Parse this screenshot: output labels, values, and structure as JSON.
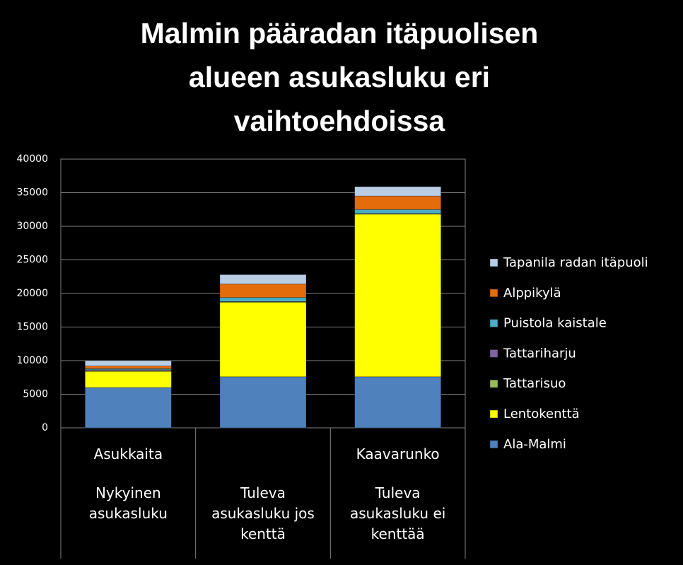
{
  "chart_data": {
    "type": "stacked_bar",
    "title": "Malmin pääradan itäpuolisen alueen asukasluku eri vaihtoehdoissa",
    "category_groups": [
      "Asukkaita",
      null,
      "Kaavarunko"
    ],
    "categories": [
      "Nykyinen asukasluku",
      "Tuleva asukasluku jos kenttä",
      "Tuleva asukasluku ei kenttää"
    ],
    "series": [
      {
        "name": "Ala-Malmi",
        "color": "#4f81bd",
        "values": [
          6000,
          7600,
          7600
        ]
      },
      {
        "name": "Lentokenttä",
        "color": "#ffff00",
        "values": [
          2400,
          11100,
          24200
        ]
      },
      {
        "name": "Tattarisuo",
        "color": "#9bbb59",
        "values": [
          100,
          50,
          50
        ]
      },
      {
        "name": "Tattariharju",
        "color": "#8064a2",
        "values": [
          150,
          50,
          50
        ]
      },
      {
        "name": "Puistola kaistale",
        "color": "#4bacc6",
        "values": [
          150,
          600,
          600
        ]
      },
      {
        "name": "Alppikylä",
        "color": "#e46c0a",
        "values": [
          400,
          2000,
          2000
        ]
      },
      {
        "name": "Tapanila radan itäpuoli",
        "color": "#b9cde5",
        "values": [
          800,
          1400,
          1400
        ]
      }
    ],
    "ylim": [
      0,
      40000
    ],
    "yticks": [
      0,
      5000,
      10000,
      15000,
      20000,
      25000,
      30000,
      35000,
      40000
    ],
    "grid": true,
    "legend": "right"
  }
}
